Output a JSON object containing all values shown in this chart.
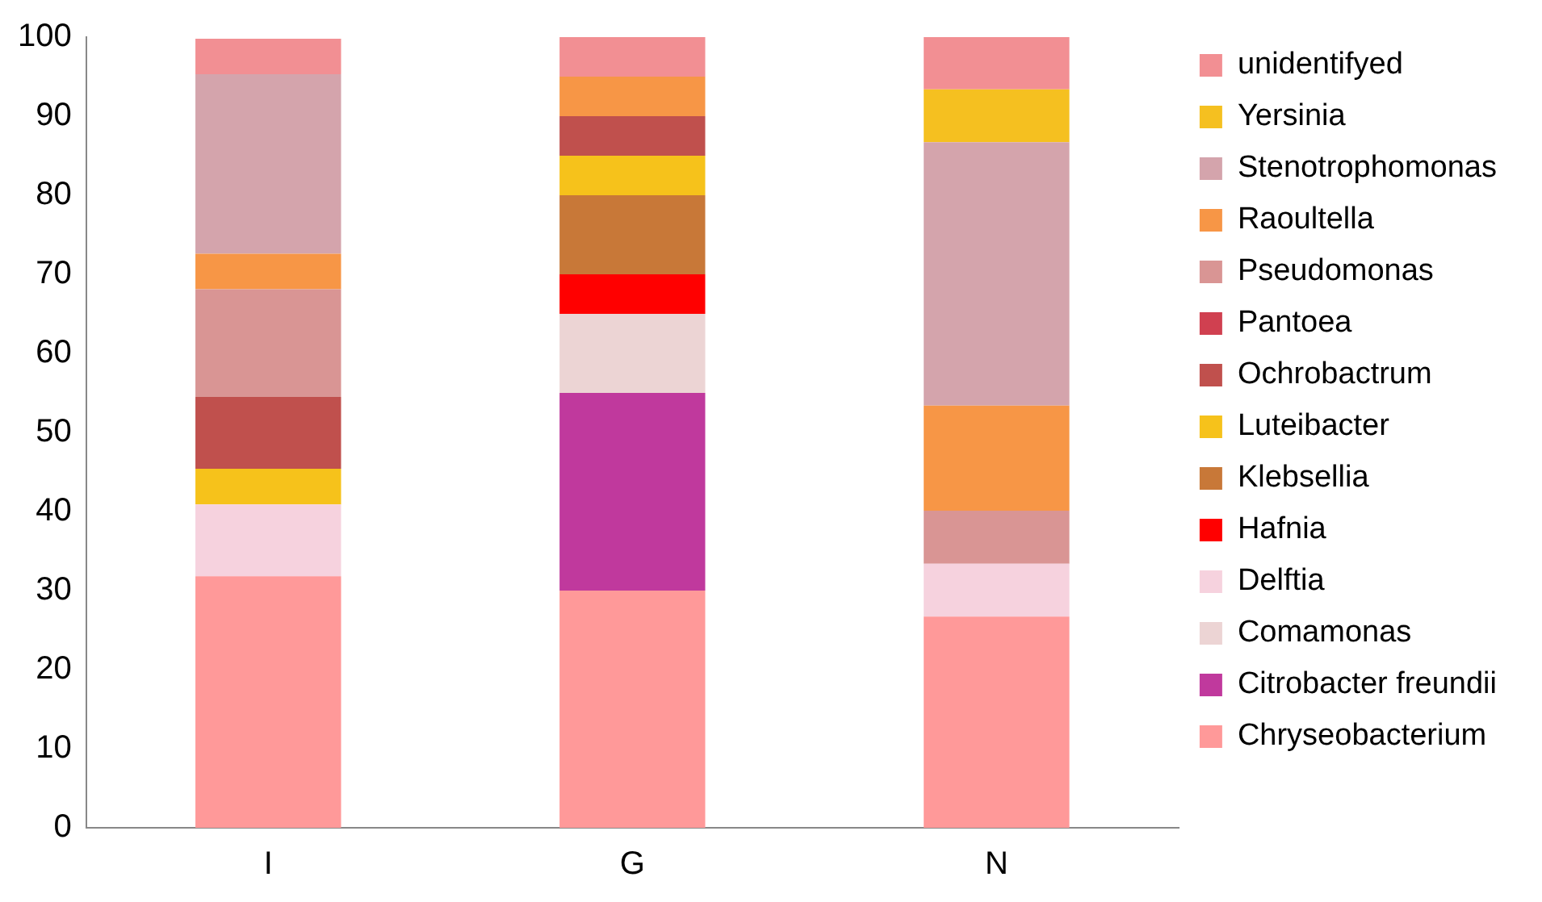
{
  "chart_data": {
    "type": "bar",
    "stacked": true,
    "categories": [
      "I",
      "G",
      "N"
    ],
    "ylim": [
      0,
      100
    ],
    "yticks": [
      0,
      10,
      20,
      30,
      40,
      50,
      60,
      70,
      80,
      90,
      100
    ],
    "grid": false,
    "legend": "right",
    "series": [
      {
        "name": "Chryseobacterium",
        "color": "#ff9999",
        "values": [
          31.8,
          30,
          26.7
        ]
      },
      {
        "name": "Citrobacter freundii",
        "color": "#c0399d",
        "values": [
          null,
          25,
          null
        ]
      },
      {
        "name": "Comamonas",
        "color": "#ecd4d4",
        "values": [
          null,
          10,
          null
        ]
      },
      {
        "name": "Delftia",
        "color": "#f6d2de",
        "values": [
          9.1,
          null,
          6.7
        ]
      },
      {
        "name": "Hafnia",
        "color": "#ff0000",
        "values": [
          null,
          5,
          null
        ]
      },
      {
        "name": "Klebsellia",
        "color": "#c87838",
        "values": [
          null,
          10,
          null
        ]
      },
      {
        "name": "Luteibacter",
        "color": "#f6c21b",
        "values": [
          4.5,
          5,
          null
        ]
      },
      {
        "name": "Ochrobactrum",
        "color": "#c0504d",
        "values": [
          9.1,
          5,
          null
        ]
      },
      {
        "name": "Pantoea",
        "color": "#d04050",
        "values": [
          null,
          null,
          null
        ]
      },
      {
        "name": "Pseudomonas",
        "color": "#d99594",
        "values": [
          13.6,
          null,
          6.7
        ]
      },
      {
        "name": "Raoultella",
        "color": "#f79646",
        "values": [
          4.5,
          5,
          13.3
        ]
      },
      {
        "name": "Stenotrophomonas",
        "color": "#d4a4ac",
        "values": [
          22.7,
          null,
          33.3
        ]
      },
      {
        "name": "Yersinia",
        "color": "#f5c020",
        "values": [
          null,
          null,
          6.7
        ]
      },
      {
        "name": "unidentifyed",
        "color": "#f28f93",
        "values": [
          4.5,
          5,
          6.6
        ]
      }
    ]
  }
}
